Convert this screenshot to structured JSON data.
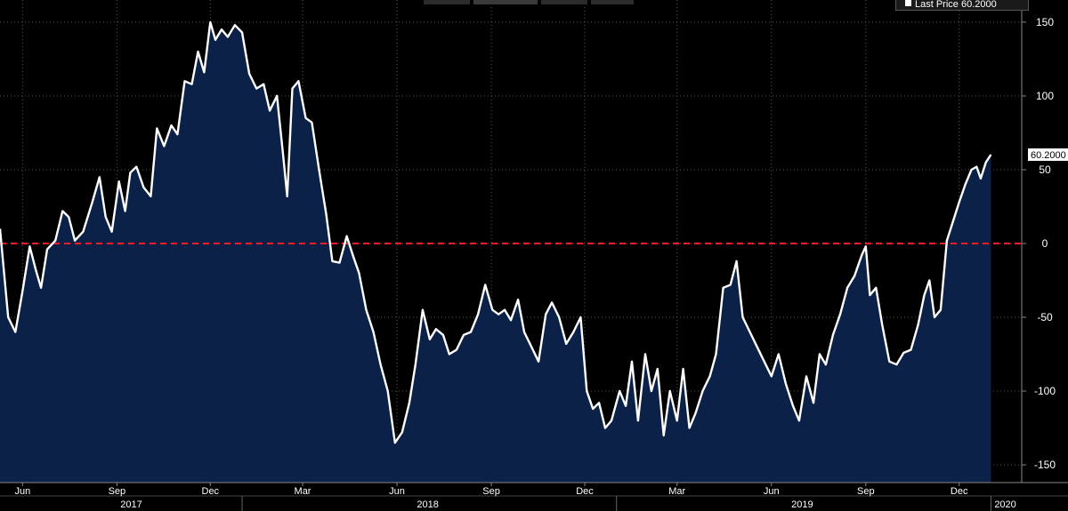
{
  "legend": {
    "label": "Last Price",
    "value_text": "60.2000"
  },
  "chart_data": {
    "type": "area",
    "title": "",
    "xlabel": "",
    "ylabel": "",
    "ylim": [
      -162,
      165
    ],
    "xlim": [
      "2017-05-10",
      "2020-01-31"
    ],
    "y_ticks": [
      150,
      100,
      50,
      0,
      -50,
      -100,
      -150
    ],
    "x_month_ticks": [
      {
        "label": "Jun",
        "date": "2017-06-01"
      },
      {
        "label": "Sep",
        "date": "2017-09-01"
      },
      {
        "label": "Dec",
        "date": "2017-12-01"
      },
      {
        "label": "Mar",
        "date": "2018-03-01"
      },
      {
        "label": "Jun",
        "date": "2018-06-01"
      },
      {
        "label": "Sep",
        "date": "2018-09-01"
      },
      {
        "label": "Dec",
        "date": "2018-12-01"
      },
      {
        "label": "Mar",
        "date": "2019-03-01"
      },
      {
        "label": "Jun",
        "date": "2019-06-01"
      },
      {
        "label": "Sep",
        "date": "2019-09-01"
      },
      {
        "label": "Dec",
        "date": "2019-12-01"
      }
    ],
    "x_year_ticks": [
      {
        "label": "2017",
        "date": "2017-09-15",
        "start": "2017-05-10"
      },
      {
        "label": "2018",
        "date": "2018-07-01",
        "start": "2018-01-01"
      },
      {
        "label": "2019",
        "date": "2019-07-01",
        "start": "2019-01-01"
      },
      {
        "label": "2020",
        "date": "2020-01-15",
        "start": "2020-01-01"
      }
    ],
    "reference_line": {
      "y": 0,
      "color": "#e8212e",
      "style": "dashed"
    },
    "last_value_label": "60.2000",
    "grid": true,
    "colors": {
      "line": "#ffffff",
      "fill": "#0b2147",
      "background": "#000000",
      "grid": "#555555"
    },
    "series": [
      {
        "name": "Last Price",
        "points": [
          [
            "2017-05-10",
            10
          ],
          [
            "2017-05-18",
            -50
          ],
          [
            "2017-05-25",
            -60
          ],
          [
            "2017-06-01",
            -32
          ],
          [
            "2017-06-08",
            -2
          ],
          [
            "2017-06-14",
            -18
          ],
          [
            "2017-06-19",
            -30
          ],
          [
            "2017-06-25",
            -4
          ],
          [
            "2017-07-03",
            2
          ],
          [
            "2017-07-10",
            22
          ],
          [
            "2017-07-16",
            18
          ],
          [
            "2017-07-22",
            2
          ],
          [
            "2017-07-30",
            8
          ],
          [
            "2017-08-08",
            28
          ],
          [
            "2017-08-15",
            45
          ],
          [
            "2017-08-21",
            18
          ],
          [
            "2017-08-27",
            8
          ],
          [
            "2017-09-03",
            42
          ],
          [
            "2017-09-09",
            22
          ],
          [
            "2017-09-14",
            48
          ],
          [
            "2017-09-20",
            52
          ],
          [
            "2017-09-27",
            38
          ],
          [
            "2017-10-04",
            32
          ],
          [
            "2017-10-10",
            78
          ],
          [
            "2017-10-17",
            66
          ],
          [
            "2017-10-24",
            80
          ],
          [
            "2017-10-30",
            74
          ],
          [
            "2017-11-06",
            110
          ],
          [
            "2017-11-13",
            108
          ],
          [
            "2017-11-19",
            130
          ],
          [
            "2017-11-25",
            116
          ],
          [
            "2017-12-01",
            150
          ],
          [
            "2017-12-06",
            138
          ],
          [
            "2017-12-12",
            145
          ],
          [
            "2017-12-18",
            140
          ],
          [
            "2017-12-25",
            148
          ],
          [
            "2018-01-01",
            143
          ],
          [
            "2018-01-08",
            115
          ],
          [
            "2018-01-15",
            105
          ],
          [
            "2018-01-22",
            108
          ],
          [
            "2018-01-28",
            90
          ],
          [
            "2018-02-04",
            100
          ],
          [
            "2018-02-10",
            60
          ],
          [
            "2018-02-14",
            32
          ],
          [
            "2018-02-19",
            105
          ],
          [
            "2018-02-25",
            110
          ],
          [
            "2018-03-04",
            85
          ],
          [
            "2018-03-10",
            82
          ],
          [
            "2018-03-17",
            50
          ],
          [
            "2018-03-24",
            20
          ],
          [
            "2018-03-30",
            -12
          ],
          [
            "2018-04-06",
            -13
          ],
          [
            "2018-04-13",
            5
          ],
          [
            "2018-04-19",
            -8
          ],
          [
            "2018-04-25",
            -20
          ],
          [
            "2018-05-02",
            -45
          ],
          [
            "2018-05-09",
            -60
          ],
          [
            "2018-05-16",
            -82
          ],
          [
            "2018-05-23",
            -100
          ],
          [
            "2018-05-30",
            -135
          ],
          [
            "2018-06-06",
            -128
          ],
          [
            "2018-06-13",
            -108
          ],
          [
            "2018-06-19",
            -82
          ],
          [
            "2018-06-26",
            -45
          ],
          [
            "2018-07-03",
            -65
          ],
          [
            "2018-07-09",
            -58
          ],
          [
            "2018-07-16",
            -62
          ],
          [
            "2018-07-22",
            -75
          ],
          [
            "2018-07-29",
            -72
          ],
          [
            "2018-08-05",
            -62
          ],
          [
            "2018-08-12",
            -60
          ],
          [
            "2018-08-19",
            -48
          ],
          [
            "2018-08-26",
            -28
          ],
          [
            "2018-09-02",
            -45
          ],
          [
            "2018-09-08",
            -48
          ],
          [
            "2018-09-14",
            -45
          ],
          [
            "2018-09-20",
            -52
          ],
          [
            "2018-09-27",
            -38
          ],
          [
            "2018-10-03",
            -60
          ],
          [
            "2018-10-10",
            -70
          ],
          [
            "2018-10-17",
            -80
          ],
          [
            "2018-10-24",
            -48
          ],
          [
            "2018-10-30",
            -40
          ],
          [
            "2018-11-06",
            -50
          ],
          [
            "2018-11-13",
            -68
          ],
          [
            "2018-11-20",
            -60
          ],
          [
            "2018-11-27",
            -50
          ],
          [
            "2018-12-03",
            -100
          ],
          [
            "2018-12-09",
            -112
          ],
          [
            "2018-12-15",
            -108
          ],
          [
            "2018-12-21",
            -125
          ],
          [
            "2018-12-27",
            -120
          ],
          [
            "2019-01-04",
            -100
          ],
          [
            "2019-01-10",
            -110
          ],
          [
            "2019-01-16",
            -80
          ],
          [
            "2019-01-22",
            -120
          ],
          [
            "2019-01-29",
            -75
          ],
          [
            "2019-02-04",
            -100
          ],
          [
            "2019-02-10",
            -85
          ],
          [
            "2019-02-16",
            -130
          ],
          [
            "2019-02-22",
            -100
          ],
          [
            "2019-03-01",
            -120
          ],
          [
            "2019-03-07",
            -85
          ],
          [
            "2019-03-13",
            -125
          ],
          [
            "2019-03-19",
            -115
          ],
          [
            "2019-03-26",
            -100
          ],
          [
            "2019-04-02",
            -90
          ],
          [
            "2019-04-08",
            -75
          ],
          [
            "2019-04-15",
            -30
          ],
          [
            "2019-04-22",
            -28
          ],
          [
            "2019-04-28",
            -12
          ],
          [
            "2019-05-04",
            -50
          ],
          [
            "2019-05-11",
            -60
          ],
          [
            "2019-05-18",
            -70
          ],
          [
            "2019-05-25",
            -80
          ],
          [
            "2019-06-01",
            -90
          ],
          [
            "2019-06-08",
            -75
          ],
          [
            "2019-06-15",
            -95
          ],
          [
            "2019-06-22",
            -110
          ],
          [
            "2019-06-28",
            -120
          ],
          [
            "2019-07-05",
            -90
          ],
          [
            "2019-07-12",
            -108
          ],
          [
            "2019-07-18",
            -75
          ],
          [
            "2019-07-24",
            -82
          ],
          [
            "2019-07-31",
            -62
          ],
          [
            "2019-08-07",
            -48
          ],
          [
            "2019-08-14",
            -30
          ],
          [
            "2019-08-21",
            -22
          ],
          [
            "2019-08-28",
            -8
          ],
          [
            "2019-09-01",
            -2
          ],
          [
            "2019-09-05",
            -35
          ],
          [
            "2019-09-11",
            -30
          ],
          [
            "2019-09-17",
            -55
          ],
          [
            "2019-09-24",
            -80
          ],
          [
            "2019-10-01",
            -82
          ],
          [
            "2019-10-08",
            -74
          ],
          [
            "2019-10-15",
            -72
          ],
          [
            "2019-10-22",
            -55
          ],
          [
            "2019-10-28",
            -35
          ],
          [
            "2019-11-02",
            -25
          ],
          [
            "2019-11-07",
            -50
          ],
          [
            "2019-11-13",
            -45
          ],
          [
            "2019-11-19",
            2
          ],
          [
            "2019-11-25",
            15
          ],
          [
            "2019-12-01",
            28
          ],
          [
            "2019-12-07",
            40
          ],
          [
            "2019-12-13",
            50
          ],
          [
            "2019-12-18",
            52
          ],
          [
            "2019-12-22",
            44
          ],
          [
            "2019-12-27",
            55
          ],
          [
            "2020-01-01",
            60.2
          ]
        ]
      }
    ]
  }
}
